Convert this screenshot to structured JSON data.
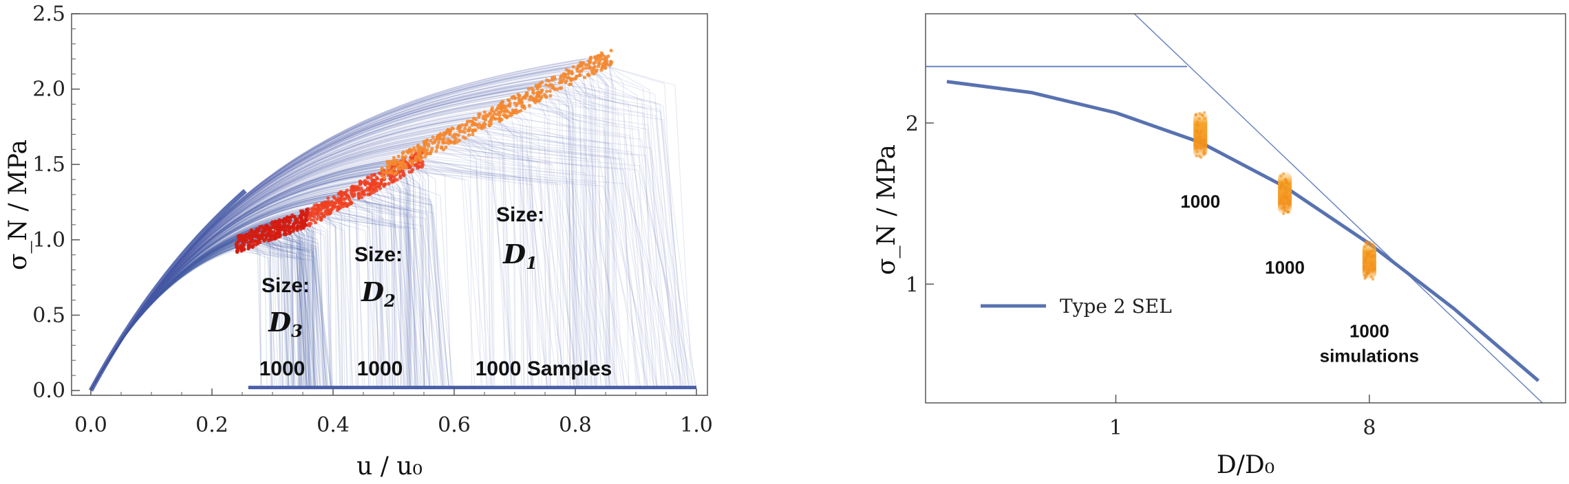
{
  "chart_data": [
    {
      "type": "line",
      "xlabel": "u / u₀",
      "ylabel": "σ_N / MPa",
      "xlim": [
        0,
        1
      ],
      "ylim": [
        0,
        2.5
      ],
      "x_ticks": [
        "0.0",
        "0.2",
        "0.4",
        "0.6",
        "0.8",
        "1.0"
      ],
      "y_ticks": [
        "0.0",
        "0.5",
        "1.0",
        "1.5",
        "2.0",
        "2.5"
      ],
      "series": [
        {
          "name": "Size D3",
          "samples": 1000,
          "peak_u_range": [
            0.24,
            0.36
          ],
          "peak_stress_range": [
            0.97,
            1.15
          ],
          "failure_u_range": [
            0.27,
            0.4
          ]
        },
        {
          "name": "Size D2",
          "samples": 1000,
          "peak_u_range": [
            0.36,
            0.55
          ],
          "peak_stress_range": [
            1.15,
            1.55
          ],
          "failure_u_range": [
            0.38,
            0.6
          ]
        },
        {
          "name": "Size D1",
          "samples": 1000,
          "peak_u_range": [
            0.48,
            0.86
          ],
          "peak_stress_range": [
            1.45,
            2.22
          ],
          "failure_u_range": [
            0.6,
            1.0
          ]
        }
      ],
      "annotations": [
        {
          "label": "Size:",
          "symbol": "D",
          "sub": "3",
          "count": "1000"
        },
        {
          "label": "Size:",
          "symbol": "D",
          "sub": "2",
          "count": "1000"
        },
        {
          "label": "Size:",
          "symbol": "D",
          "sub": "1",
          "count": "1000 Samples"
        }
      ],
      "colors": {
        "curves": "#4a5fa8",
        "peaks_small": "#d41c10",
        "peaks_mid": "#f04020",
        "peaks_large": "#f5872e"
      }
    },
    {
      "type": "line",
      "xlabel": "D/D₀",
      "ylabel": "σ_N / MPa",
      "x_scale": "log",
      "y_scale": "log",
      "x_ticks": [
        "1",
        "8"
      ],
      "y_ticks": [
        "1",
        "2"
      ],
      "series": [
        {
          "name": "Type 2 SEL",
          "x": [
            0.25,
            0.5,
            1,
            2,
            4,
            8,
            16,
            32
          ],
          "y": [
            2.39,
            2.28,
            2.09,
            1.84,
            1.52,
            1.19,
            0.9,
            0.66
          ]
        }
      ],
      "asymptotes": {
        "horizontal_y": 2.55,
        "slope": -0.5
      },
      "scatter_clusters": [
        {
          "x": 2,
          "y_center": 1.9,
          "y_range": [
            1.72,
            2.1
          ],
          "label": "1000"
        },
        {
          "x": 4,
          "y_center": 1.48,
          "y_range": [
            1.35,
            1.62
          ],
          "label": "1000"
        },
        {
          "x": 8,
          "y_center": 1.1,
          "y_range": [
            1.02,
            1.2
          ],
          "label": "1000",
          "label2": "simulations"
        }
      ],
      "legend_position": "bottom-left",
      "colors": {
        "curve": "#5872b0",
        "asymptote": "#6a86c0",
        "cluster": "#f5a020"
      }
    }
  ]
}
